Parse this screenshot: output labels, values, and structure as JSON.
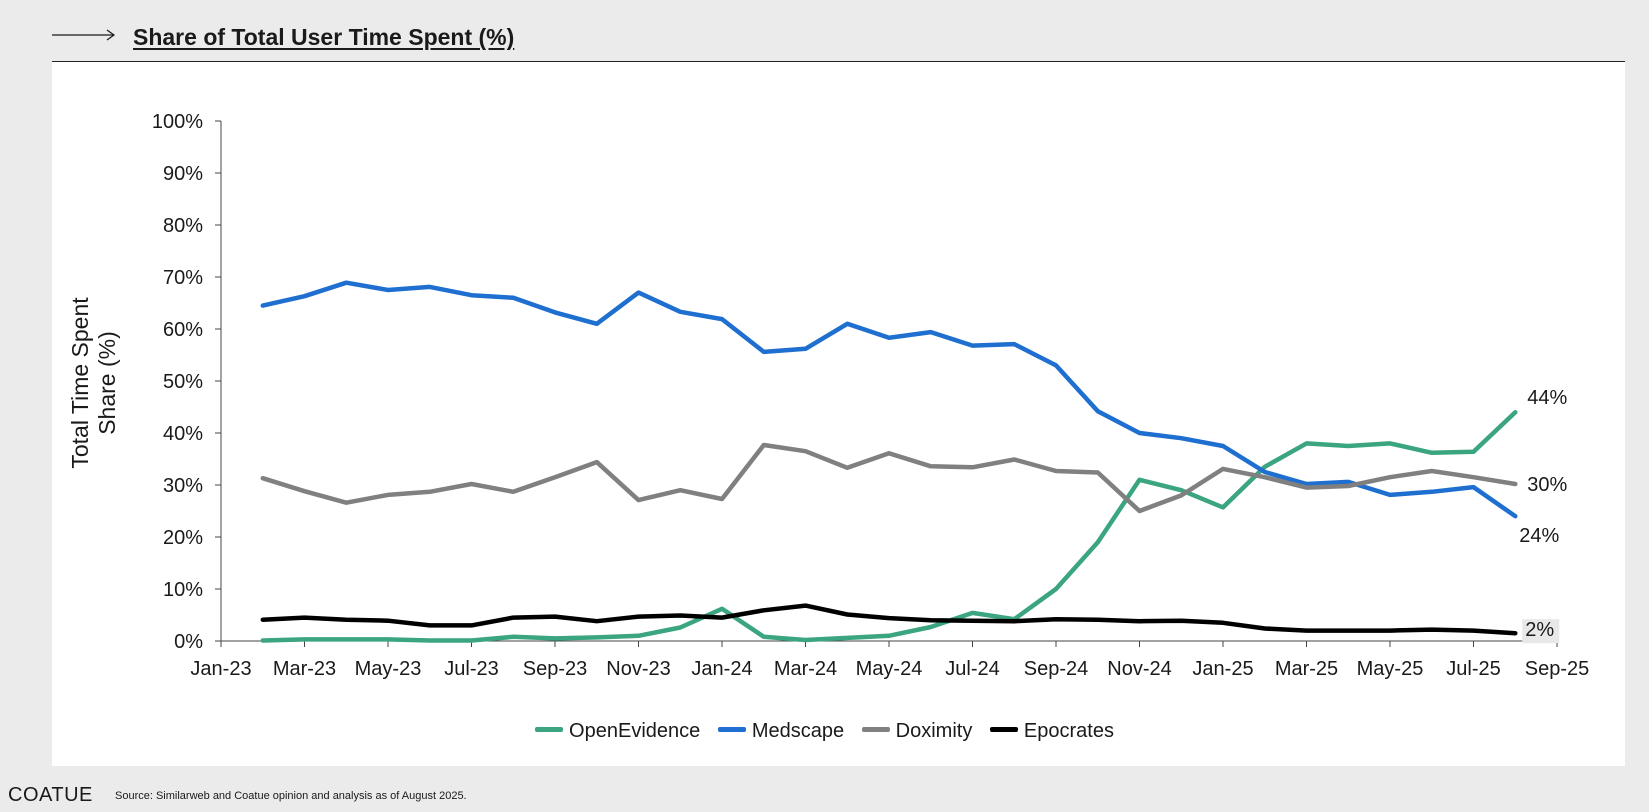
{
  "header": {
    "title": "Share of Total User Time Spent (%)"
  },
  "footer": {
    "logo": "COATUE",
    "source": "Source: Similarweb and Coatue opinion and analysis as of August 2025."
  },
  "icons": {
    "header_arrow": "arrow-right-icon"
  },
  "chart_data": {
    "type": "line",
    "ylabel_lines": [
      "Total Time Spent",
      "Share (%)"
    ],
    "xlabel": "",
    "ylim": [
      0,
      100
    ],
    "yticks": [
      0,
      10,
      20,
      30,
      40,
      50,
      60,
      70,
      80,
      90,
      100
    ],
    "ytick_labels": [
      "0%",
      "10%",
      "20%",
      "30%",
      "40%",
      "50%",
      "60%",
      "70%",
      "80%",
      "90%",
      "100%"
    ],
    "xlim": [
      "2023-01",
      "2025-09"
    ],
    "xtick_labels": [
      "Jan-23",
      "Mar-23",
      "May-23",
      "Jul-23",
      "Sep-23",
      "Nov-23",
      "Jan-24",
      "Mar-24",
      "May-24",
      "Jul-24",
      "Sep-24",
      "Nov-24",
      "Jan-25",
      "Mar-25",
      "May-25",
      "Jul-25",
      "Sep-25"
    ],
    "xtick_dates": [
      "2023-01",
      "2023-03",
      "2023-05",
      "2023-07",
      "2023-09",
      "2023-11",
      "2024-01",
      "2024-03",
      "2024-05",
      "2024-07",
      "2024-09",
      "2024-11",
      "2025-01",
      "2025-03",
      "2025-05",
      "2025-07",
      "2025-09"
    ],
    "x": [
      "2023-02",
      "2023-03",
      "2023-04",
      "2023-05",
      "2023-06",
      "2023-07",
      "2023-08",
      "2023-09",
      "2023-10",
      "2023-11",
      "2023-12",
      "2024-01",
      "2024-02",
      "2024-03",
      "2024-04",
      "2024-05",
      "2024-06",
      "2024-07",
      "2024-08",
      "2024-09",
      "2024-10",
      "2024-11",
      "2024-12",
      "2025-01",
      "2025-02",
      "2025-03",
      "2025-04",
      "2025-05",
      "2025-06",
      "2025-07",
      "2025-08"
    ],
    "legend_position": "bottom-center",
    "grid": false,
    "series": [
      {
        "name": "OpenEvidence",
        "color": "#3aa57e",
        "values": [
          0.1,
          0.3,
          0.3,
          0.3,
          0.1,
          0.1,
          0.8,
          0.5,
          0.7,
          1.0,
          2.6,
          6.2,
          0.8,
          0.2,
          0.6,
          1.0,
          2.7,
          5.4,
          4.2,
          10.0,
          19.0,
          31.0,
          29.0,
          25.7,
          33.5,
          38.0,
          37.5,
          38.0,
          36.2,
          36.4,
          44.0
        ],
        "end_label": "44%"
      },
      {
        "name": "Medscape",
        "color": "#1f6fd1",
        "values": [
          64.5,
          66.3,
          68.9,
          67.5,
          68.1,
          66.5,
          66.0,
          63.2,
          61.0,
          67.0,
          63.3,
          61.9,
          55.6,
          56.2,
          61.0,
          58.3,
          59.4,
          56.8,
          57.1,
          53.0,
          44.2,
          40.0,
          39.0,
          37.5,
          32.5,
          30.2,
          30.6,
          28.1,
          28.7,
          29.6,
          24.0
        ],
        "end_label": "24%"
      },
      {
        "name": "Doximity",
        "color": "#808080",
        "values": [
          31.3,
          28.8,
          26.6,
          28.1,
          28.7,
          30.2,
          28.7,
          31.5,
          34.4,
          27.1,
          29.0,
          27.3,
          37.7,
          36.5,
          33.3,
          36.1,
          33.6,
          33.4,
          34.9,
          32.7,
          32.4,
          25.0,
          28.0,
          33.1,
          31.5,
          29.5,
          29.8,
          31.5,
          32.7,
          31.5,
          30.2
        ],
        "end_label": "30%"
      },
      {
        "name": "Epocrates",
        "color": "#000000",
        "values": [
          4.1,
          4.5,
          4.1,
          3.9,
          3.0,
          3.0,
          4.5,
          4.7,
          3.8,
          4.7,
          4.9,
          4.5,
          5.9,
          6.8,
          5.1,
          4.4,
          4.0,
          3.9,
          3.8,
          4.2,
          4.1,
          3.8,
          3.9,
          3.5,
          2.4,
          2.0,
          2.0,
          2.0,
          2.2,
          2.0,
          1.5
        ],
        "end_label": "2%"
      }
    ]
  }
}
